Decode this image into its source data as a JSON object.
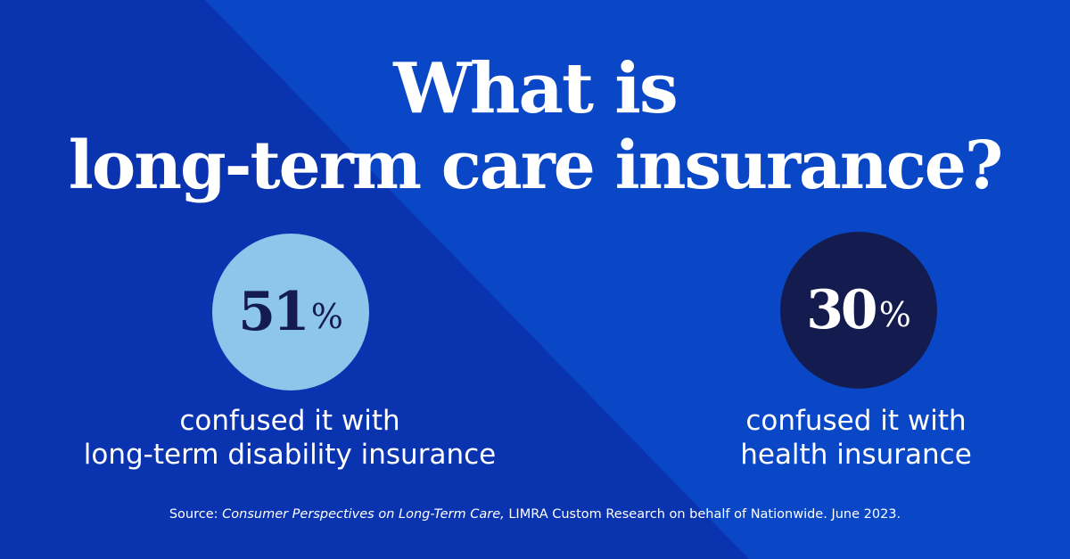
{
  "colors": {
    "background_light": "#0a47c7",
    "background_dark": "#0a33b0",
    "circle_left": "#8ec5ea",
    "circle_right": "#141c4f",
    "text": "#ffffff",
    "dark_text": "#141c4f"
  },
  "headline": {
    "line1": "What is",
    "line2": "long-term care insurance?"
  },
  "stats": [
    {
      "value": "51",
      "unit": "%",
      "caption_line1": "confused it with",
      "caption_line2": "long-term disability insurance"
    },
    {
      "value": "30",
      "unit": "%",
      "caption_line1": "confused it with",
      "caption_line2": "health insurance"
    }
  ],
  "source": {
    "prefix": "Source: ",
    "publication": "Consumer Perspectives on Long-Term Care,",
    "rest": " LIMRA Custom Research on behalf of Nationwide. June 2023."
  }
}
